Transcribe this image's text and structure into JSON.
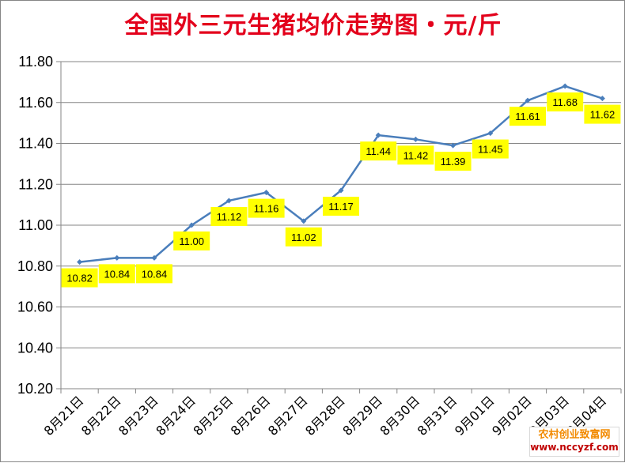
{
  "chart_data": {
    "type": "line",
    "title": "全国外三元生猪均价走势图・元/斤",
    "categories": [
      "8月21日",
      "8月22日",
      "8月23日",
      "8月24日",
      "8月25日",
      "8月26日",
      "8月27日",
      "8月28日",
      "8月29日",
      "8月30日",
      "8月31日",
      "9月01日",
      "9月02日",
      "9月03日",
      "9月04日"
    ],
    "values": [
      10.82,
      10.84,
      10.84,
      11.0,
      11.12,
      11.16,
      11.02,
      11.17,
      11.44,
      11.42,
      11.39,
      11.45,
      11.61,
      11.68,
      11.62
    ],
    "data_labels": [
      "10.82",
      "10.84",
      "10.84",
      "11.00",
      "11.12",
      "11.16",
      "11.02",
      "11.17",
      "11.44",
      "11.42",
      "11.39",
      "11.45",
      "11.61",
      "11.68",
      "11.62"
    ],
    "ylim": [
      10.2,
      11.8
    ],
    "yticks": [
      "10.20",
      "10.40",
      "10.60",
      "10.80",
      "11.00",
      "11.20",
      "11.40",
      "11.60",
      "11.80"
    ],
    "xlabel": "",
    "ylabel": "",
    "grid": true,
    "legend": "none",
    "line_color": "#4a7ebb",
    "label_bg_color": "#ffff00"
  },
  "watermark": {
    "line1": "农村创业致富网",
    "line2": "www.nccyzf.com"
  }
}
